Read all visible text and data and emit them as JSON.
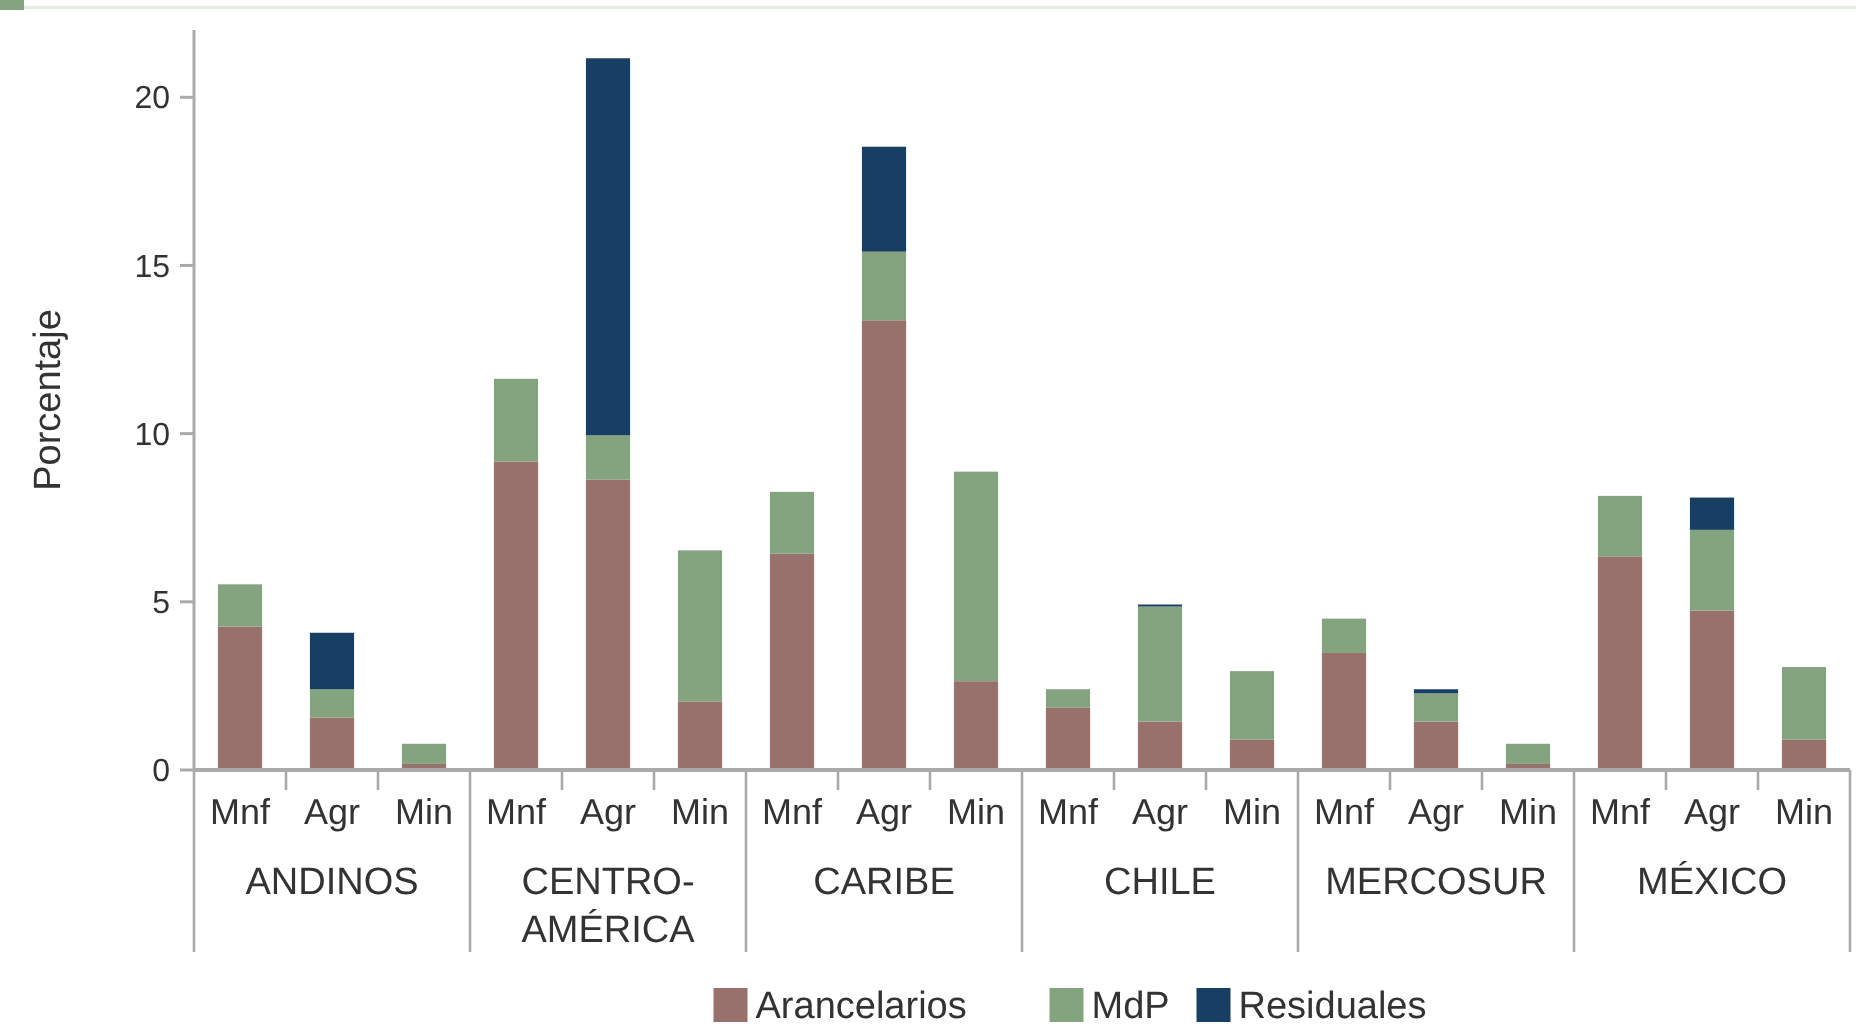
{
  "chart_data": {
    "type": "bar",
    "stacked": true,
    "ylabel": "Porcentaje",
    "categories": [
      "Mnf",
      "Agr",
      "Min",
      "Mnf",
      "Agr",
      "Min",
      "Mnf",
      "Agr",
      "Min",
      "Mnf",
      "Agr",
      "Min",
      "Mnf",
      "Agr",
      "Min",
      "Mnf",
      "Agr",
      "Min"
    ],
    "annotations": [
      "ANDINOS",
      "CENTRO-AMÉRICA",
      "CARIBE",
      "CHILE",
      "MERCOSUR",
      "MÉXICO"
    ],
    "series": [
      {
        "name": "Arancelarios",
        "color": "#98716d",
        "values": [
          4.26,
          1.56,
          0.18,
          9.17,
          8.63,
          2.04,
          6.43,
          13.37,
          2.64,
          1.86,
          1.44,
          0.9,
          3.48,
          1.44,
          0.18,
          6.35,
          4.74,
          0.9
        ]
      },
      {
        "name": "MdP",
        "color": "#83a47f",
        "values": [
          1.26,
          0.84,
          0.6,
          2.46,
          1.32,
          4.49,
          1.84,
          2.04,
          6.23,
          0.54,
          3.42,
          2.04,
          1.02,
          0.84,
          0.6,
          1.8,
          2.4,
          2.16
        ]
      },
      {
        "name": "Residuales",
        "color": "#173f63",
        "values": [
          0,
          1.68,
          0,
          0,
          11.21,
          0,
          0,
          3.12,
          0,
          0,
          0.06,
          0,
          0,
          0.12,
          0,
          0,
          0.96,
          0
        ]
      }
    ],
    "ylim": [
      0,
      22
    ],
    "yticks": [
      0,
      5,
      10,
      15,
      20
    ],
    "grid": false,
    "legend": "bottom"
  }
}
